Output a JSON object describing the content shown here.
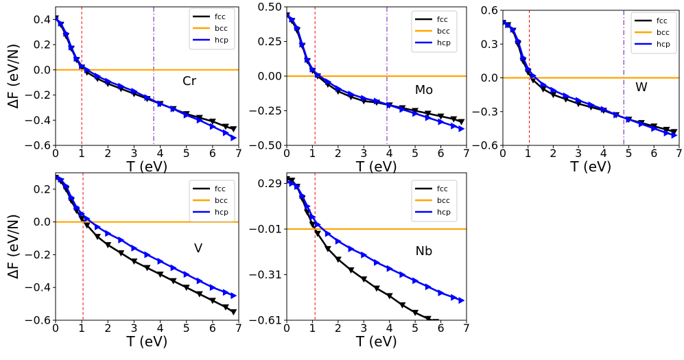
{
  "colors": {
    "fcc": "#000000",
    "bcc": "#ffa500",
    "hcp": "#0000ff",
    "tc_line": "#ff0000",
    "tm_line": "#6a0dad"
  },
  "chart_data": [
    {
      "type": "line",
      "element": "Cr",
      "xlabel": "T (eV)",
      "ylabel": "ΔF (eV/N)",
      "xlim": [
        0,
        7
      ],
      "ylim": [
        -0.6,
        0.5
      ],
      "xticks": [
        0,
        1,
        2,
        3,
        4,
        5,
        6,
        7
      ],
      "yticks": [
        -0.6,
        -0.4,
        -0.2,
        0.0,
        0.2,
        0.4
      ],
      "ytick_labels": [
        "−0.6",
        "−0.4",
        "−0.2",
        "0.0",
        "0.2",
        "0.4"
      ],
      "vlines": [
        {
          "x": 1.0,
          "style": "dashed",
          "color": "red"
        },
        {
          "x": 3.75,
          "style": "dashdot",
          "color": "purple"
        }
      ],
      "legend": [
        "fcc",
        "bcc",
        "hcp"
      ],
      "series": [
        {
          "name": "fcc",
          "x": [
            0,
            0.2,
            0.4,
            0.6,
            0.8,
            1.0,
            1.2,
            1.6,
            2.0,
            2.5,
            3.0,
            3.5,
            4.0,
            4.5,
            5.0,
            5.5,
            6.0,
            6.5,
            6.8
          ],
          "y": [
            0.41,
            0.36,
            0.27,
            0.17,
            0.08,
            0.02,
            -0.02,
            -0.07,
            -0.11,
            -0.15,
            -0.19,
            -0.23,
            -0.27,
            -0.31,
            -0.35,
            -0.38,
            -0.41,
            -0.45,
            -0.47
          ]
        },
        {
          "name": "bcc",
          "x": [
            0,
            7
          ],
          "y": [
            0,
            0
          ]
        },
        {
          "name": "hcp",
          "x": [
            0,
            0.2,
            0.4,
            0.6,
            0.8,
            1.0,
            1.2,
            1.6,
            2.0,
            2.5,
            3.0,
            3.5,
            4.0,
            4.5,
            5.0,
            5.5,
            6.0,
            6.5,
            6.8
          ],
          "y": [
            0.41,
            0.37,
            0.29,
            0.18,
            0.09,
            0.03,
            0.0,
            -0.05,
            -0.09,
            -0.13,
            -0.17,
            -0.22,
            -0.27,
            -0.31,
            -0.36,
            -0.4,
            -0.45,
            -0.5,
            -0.54
          ]
        }
      ]
    },
    {
      "type": "line",
      "element": "Mo",
      "xlabel": "T (eV)",
      "ylabel": "",
      "xlim": [
        0,
        7
      ],
      "ylim": [
        -0.5,
        0.5
      ],
      "xticks": [
        0,
        1,
        2,
        3,
        4,
        5,
        6,
        7
      ],
      "yticks": [
        -0.5,
        -0.25,
        0.0,
        0.25,
        0.5
      ],
      "ytick_labels": [
        "−0.50",
        "−0.25",
        "0.00",
        "0.25",
        "0.50"
      ],
      "vlines": [
        {
          "x": 1.1,
          "style": "dashed",
          "color": "red"
        },
        {
          "x": 3.9,
          "style": "dashdot",
          "color": "purple"
        }
      ],
      "legend": [
        "fcc",
        "bcc",
        "hcp"
      ],
      "series": [
        {
          "name": "fcc",
          "x": [
            0,
            0.2,
            0.4,
            0.6,
            0.8,
            1.0,
            1.2,
            1.6,
            2.0,
            2.5,
            3.0,
            3.5,
            4.0,
            4.5,
            5.0,
            5.5,
            6.0,
            6.5,
            6.8
          ],
          "y": [
            0.44,
            0.4,
            0.33,
            0.22,
            0.11,
            0.04,
            0.0,
            -0.06,
            -0.11,
            -0.15,
            -0.18,
            -0.19,
            -0.21,
            -0.23,
            -0.25,
            -0.27,
            -0.29,
            -0.31,
            -0.33
          ]
        },
        {
          "name": "bcc",
          "x": [
            0,
            7
          ],
          "y": [
            0,
            0
          ]
        },
        {
          "name": "hcp",
          "x": [
            0,
            0.2,
            0.4,
            0.6,
            0.8,
            1.0,
            1.2,
            1.6,
            2.0,
            2.5,
            3.0,
            3.5,
            4.0,
            4.5,
            5.0,
            5.5,
            6.0,
            6.5,
            6.8
          ],
          "y": [
            0.44,
            0.41,
            0.35,
            0.23,
            0.12,
            0.05,
            0.01,
            -0.04,
            -0.09,
            -0.13,
            -0.16,
            -0.18,
            -0.21,
            -0.24,
            -0.27,
            -0.3,
            -0.33,
            -0.36,
            -0.38
          ]
        }
      ]
    },
    {
      "type": "line",
      "element": "W",
      "xlabel": "T (eV)",
      "ylabel": "",
      "xlim": [
        0,
        7
      ],
      "ylim": [
        -0.6,
        0.6
      ],
      "xticks": [
        0,
        1,
        2,
        3,
        4,
        5,
        6,
        7
      ],
      "yticks": [
        -0.6,
        -0.3,
        0.0,
        0.3,
        0.6
      ],
      "ytick_labels": [
        "−0.6",
        "−0.3",
        "0.0",
        "0.3",
        "0.6"
      ],
      "vlines": [
        {
          "x": 1.05,
          "style": "dashed",
          "color": "red"
        },
        {
          "x": 4.8,
          "style": "dashdot",
          "color": "purple"
        }
      ],
      "legend": [
        "fcc",
        "bcc",
        "hcp"
      ],
      "series": [
        {
          "name": "fcc",
          "x": [
            0,
            0.2,
            0.4,
            0.6,
            0.8,
            1.0,
            1.2,
            1.6,
            2.0,
            2.5,
            3.0,
            3.5,
            4.0,
            4.5,
            5.0,
            5.5,
            6.0,
            6.5,
            6.8
          ],
          "y": [
            0.49,
            0.47,
            0.42,
            0.3,
            0.15,
            0.05,
            -0.02,
            -0.1,
            -0.15,
            -0.19,
            -0.23,
            -0.26,
            -0.29,
            -0.33,
            -0.37,
            -0.4,
            -0.43,
            -0.46,
            -0.48
          ]
        },
        {
          "name": "bcc",
          "x": [
            0,
            7
          ],
          "y": [
            0,
            0
          ]
        },
        {
          "name": "hcp",
          "x": [
            0,
            0.2,
            0.4,
            0.6,
            0.8,
            1.0,
            1.2,
            1.6,
            2.0,
            2.5,
            3.0,
            3.5,
            4.0,
            4.5,
            5.0,
            5.5,
            6.0,
            6.5,
            6.8
          ],
          "y": [
            0.5,
            0.47,
            0.43,
            0.33,
            0.18,
            0.08,
            0.02,
            -0.06,
            -0.11,
            -0.16,
            -0.2,
            -0.24,
            -0.28,
            -0.33,
            -0.37,
            -0.41,
            -0.45,
            -0.49,
            -0.51
          ]
        }
      ]
    },
    {
      "type": "line",
      "element": "V",
      "xlabel": "T (eV)",
      "ylabel": "ΔF (eV/N)",
      "xlim": [
        0,
        7
      ],
      "ylim": [
        -0.6,
        0.3
      ],
      "xticks": [
        0,
        1,
        2,
        3,
        4,
        5,
        6,
        7
      ],
      "yticks": [
        -0.6,
        -0.4,
        -0.2,
        0.0,
        0.2
      ],
      "ytick_labels": [
        "−0.6",
        "−0.4",
        "−0.2",
        "0.0",
        "0.2"
      ],
      "vlines": [
        {
          "x": 1.05,
          "style": "dashed",
          "color": "red"
        }
      ],
      "legend": [
        "fcc",
        "bcc",
        "hcp"
      ],
      "series": [
        {
          "name": "fcc",
          "x": [
            0,
            0.2,
            0.4,
            0.6,
            0.8,
            1.0,
            1.2,
            1.6,
            2.0,
            2.5,
            3.0,
            3.5,
            4.0,
            4.5,
            5.0,
            5.5,
            6.0,
            6.5,
            6.8
          ],
          "y": [
            0.27,
            0.25,
            0.2,
            0.13,
            0.07,
            0.02,
            -0.02,
            -0.09,
            -0.14,
            -0.19,
            -0.24,
            -0.28,
            -0.32,
            -0.36,
            -0.4,
            -0.44,
            -0.48,
            -0.52,
            -0.55
          ]
        },
        {
          "name": "bcc",
          "x": [
            0,
            7
          ],
          "y": [
            0,
            0
          ]
        },
        {
          "name": "hcp",
          "x": [
            0,
            0.2,
            0.4,
            0.6,
            0.8,
            1.0,
            1.2,
            1.6,
            2.0,
            2.5,
            3.0,
            3.5,
            4.0,
            4.5,
            5.0,
            5.5,
            6.0,
            6.5,
            6.8
          ],
          "y": [
            0.27,
            0.26,
            0.22,
            0.15,
            0.09,
            0.05,
            0.02,
            -0.03,
            -0.07,
            -0.11,
            -0.16,
            -0.2,
            -0.24,
            -0.28,
            -0.32,
            -0.36,
            -0.4,
            -0.43,
            -0.45
          ]
        }
      ]
    },
    {
      "type": "line",
      "element": "Nb",
      "xlabel": "T (eV)",
      "ylabel": "",
      "xlim": [
        0,
        7
      ],
      "ylim": [
        -0.61,
        0.36
      ],
      "xticks": [
        0,
        1,
        2,
        3,
        4,
        5,
        6,
        7
      ],
      "yticks": [
        -0.61,
        -0.31,
        -0.01,
        0.29
      ],
      "ytick_labels": [
        "−0.61",
        "−0.31",
        "−0.01",
        "0.29"
      ],
      "vlines": [
        {
          "x": 1.1,
          "style": "dashed",
          "color": "red"
        }
      ],
      "legend": [
        "fcc",
        "bcc",
        "hcp"
      ],
      "series": [
        {
          "name": "fcc",
          "x": [
            0,
            0.2,
            0.4,
            0.6,
            0.8,
            1.0,
            1.2,
            1.6,
            2.0,
            2.5,
            3.0,
            3.5,
            4.0,
            4.5,
            5.0,
            5.5,
            5.8
          ],
          "y": [
            0.32,
            0.31,
            0.27,
            0.19,
            0.1,
            0.02,
            -0.04,
            -0.14,
            -0.21,
            -0.28,
            -0.34,
            -0.4,
            -0.45,
            -0.51,
            -0.56,
            -0.6,
            -0.62
          ]
        },
        {
          "name": "bcc",
          "x": [
            0,
            7
          ],
          "y": [
            -0.01,
            -0.01
          ]
        },
        {
          "name": "hcp",
          "x": [
            0,
            0.2,
            0.4,
            0.6,
            0.8,
            1.0,
            1.2,
            1.6,
            2.0,
            2.5,
            3.0,
            3.5,
            4.0,
            4.5,
            5.0,
            5.5,
            6.0,
            6.5,
            6.8
          ],
          "y": [
            0.3,
            0.29,
            0.27,
            0.21,
            0.14,
            0.07,
            0.02,
            -0.04,
            -0.09,
            -0.14,
            -0.18,
            -0.23,
            -0.27,
            -0.31,
            -0.35,
            -0.39,
            -0.43,
            -0.46,
            -0.48
          ]
        }
      ]
    }
  ]
}
